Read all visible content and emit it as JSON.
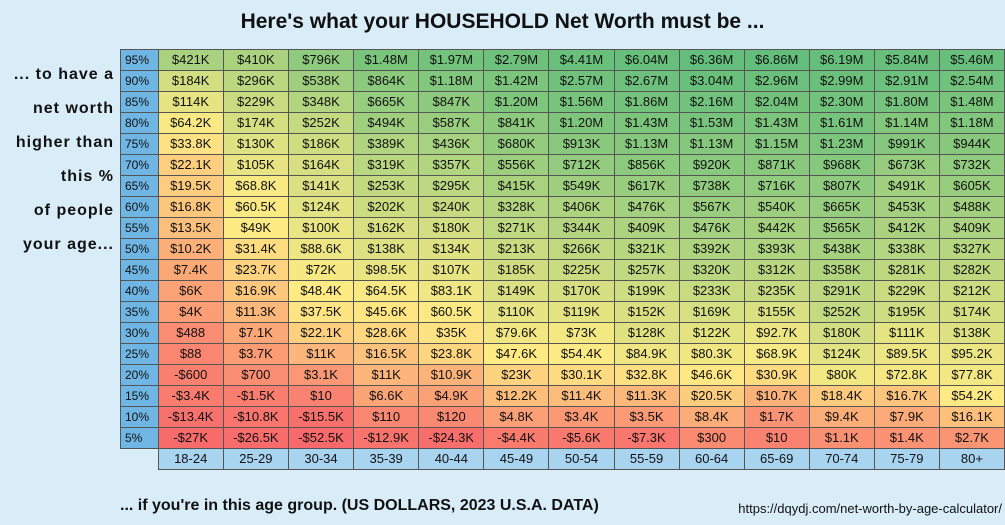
{
  "title": "Here's what your HOUSEHOLD Net Worth must be ...",
  "side_label": [
    "... to have a",
    "net worth",
    "higher than",
    "this %",
    "of people",
    "your age..."
  ],
  "footer": "... if you're in this age group. (US DOLLARS, 2023 U.S.A. DATA)",
  "url": "https://dqydj.com/net-worth-by-age-calculator/",
  "colors": {
    "high": "#63be7b",
    "mid": "#ffeb84",
    "low": "#f8696b",
    "percentile": "#6fb6e5",
    "age_header": "#a9d4ef",
    "background": "#d9edf9"
  },
  "chart_data": {
    "type": "table",
    "title": "Here's what your HOUSEHOLD Net Worth must be ...",
    "columns": [
      "18-24",
      "25-29",
      "30-34",
      "35-39",
      "40-44",
      "45-49",
      "50-54",
      "55-59",
      "60-64",
      "65-69",
      "70-74",
      "75-79",
      "80+"
    ],
    "rows": [
      {
        "percentile": "95%",
        "cells": [
          "$421K",
          "$410K",
          "$796K",
          "$1.48M",
          "$1.97M",
          "$2.79M",
          "$4.41M",
          "$6.04M",
          "$6.36M",
          "$6.86M",
          "$6.19M",
          "$5.84M",
          "$5.46M"
        ],
        "values": [
          421000,
          410000,
          796000,
          1480000,
          1970000,
          2790000,
          4410000,
          6040000,
          6360000,
          6860000,
          6190000,
          5840000,
          5460000
        ]
      },
      {
        "percentile": "90%",
        "cells": [
          "$184K",
          "$296K",
          "$538K",
          "$864K",
          "$1.18M",
          "$1.42M",
          "$2.57M",
          "$2.67M",
          "$3.04M",
          "$2.96M",
          "$2.99M",
          "$2.91M",
          "$2.54M"
        ],
        "values": [
          184000,
          296000,
          538000,
          864000,
          1180000,
          1420000,
          2570000,
          2670000,
          3040000,
          2960000,
          2990000,
          2910000,
          2540000
        ]
      },
      {
        "percentile": "85%",
        "cells": [
          "$114K",
          "$229K",
          "$348K",
          "$665K",
          "$847K",
          "$1.20M",
          "$1.56M",
          "$1.86M",
          "$2.16M",
          "$2.04M",
          "$2.30M",
          "$1.80M",
          "$1.48M"
        ],
        "values": [
          114000,
          229000,
          348000,
          665000,
          847000,
          1200000,
          1560000,
          1860000,
          2160000,
          2040000,
          2300000,
          1800000,
          1480000
        ]
      },
      {
        "percentile": "80%",
        "cells": [
          "$64.2K",
          "$174K",
          "$252K",
          "$494K",
          "$587K",
          "$841K",
          "$1.20M",
          "$1.43M",
          "$1.53M",
          "$1.43M",
          "$1.61M",
          "$1.14M",
          "$1.18M"
        ],
        "values": [
          64200,
          174000,
          252000,
          494000,
          587000,
          841000,
          1200000,
          1430000,
          1530000,
          1430000,
          1610000,
          1140000,
          1180000
        ]
      },
      {
        "percentile": "75%",
        "cells": [
          "$33.8K",
          "$130K",
          "$186K",
          "$389K",
          "$436K",
          "$680K",
          "$913K",
          "$1.13M",
          "$1.13M",
          "$1.15M",
          "$1.23M",
          "$991K",
          "$944K"
        ],
        "values": [
          33800,
          130000,
          186000,
          389000,
          436000,
          680000,
          913000,
          1130000,
          1130000,
          1150000,
          1230000,
          991000,
          944000
        ]
      },
      {
        "percentile": "70%",
        "cells": [
          "$22.1K",
          "$105K",
          "$164K",
          "$319K",
          "$357K",
          "$556K",
          "$712K",
          "$856K",
          "$920K",
          "$871K",
          "$968K",
          "$673K",
          "$732K"
        ],
        "values": [
          22100,
          105000,
          164000,
          319000,
          357000,
          556000,
          712000,
          856000,
          920000,
          871000,
          968000,
          673000,
          732000
        ]
      },
      {
        "percentile": "65%",
        "cells": [
          "$19.5K",
          "$68.8K",
          "$141K",
          "$253K",
          "$295K",
          "$415K",
          "$549K",
          "$617K",
          "$738K",
          "$716K",
          "$807K",
          "$491K",
          "$605K"
        ],
        "values": [
          19500,
          68800,
          141000,
          253000,
          295000,
          415000,
          549000,
          617000,
          738000,
          716000,
          807000,
          491000,
          605000
        ]
      },
      {
        "percentile": "60%",
        "cells": [
          "$16.8K",
          "$60.5K",
          "$124K",
          "$202K",
          "$240K",
          "$328K",
          "$406K",
          "$476K",
          "$567K",
          "$540K",
          "$665K",
          "$453K",
          "$488K"
        ],
        "values": [
          16800,
          60500,
          124000,
          202000,
          240000,
          328000,
          406000,
          476000,
          567000,
          540000,
          665000,
          453000,
          488000
        ]
      },
      {
        "percentile": "55%",
        "cells": [
          "$13.5K",
          "$49K",
          "$100K",
          "$162K",
          "$180K",
          "$271K",
          "$344K",
          "$409K",
          "$476K",
          "$442K",
          "$565K",
          "$412K",
          "$409K"
        ],
        "values": [
          13500,
          49000,
          100000,
          162000,
          180000,
          271000,
          344000,
          409000,
          476000,
          442000,
          565000,
          412000,
          409000
        ]
      },
      {
        "percentile": "50%",
        "cells": [
          "$10.2K",
          "$31.4K",
          "$88.6K",
          "$138K",
          "$134K",
          "$213K",
          "$266K",
          "$321K",
          "$392K",
          "$393K",
          "$438K",
          "$338K",
          "$327K"
        ],
        "values": [
          10200,
          31400,
          88600,
          138000,
          134000,
          213000,
          266000,
          321000,
          392000,
          393000,
          438000,
          338000,
          327000
        ]
      },
      {
        "percentile": "45%",
        "cells": [
          "$7.4K",
          "$23.7K",
          "$72K",
          "$98.5K",
          "$107K",
          "$185K",
          "$225K",
          "$257K",
          "$320K",
          "$312K",
          "$358K",
          "$281K",
          "$282K"
        ],
        "values": [
          7400,
          23700,
          72000,
          98500,
          107000,
          185000,
          225000,
          257000,
          320000,
          312000,
          358000,
          281000,
          282000
        ]
      },
      {
        "percentile": "40%",
        "cells": [
          "$6K",
          "$16.9K",
          "$48.4K",
          "$64.5K",
          "$83.1K",
          "$149K",
          "$170K",
          "$199K",
          "$233K",
          "$235K",
          "$291K",
          "$229K",
          "$212K"
        ],
        "values": [
          6000,
          16900,
          48400,
          64500,
          83100,
          149000,
          170000,
          199000,
          233000,
          235000,
          291000,
          229000,
          212000
        ]
      },
      {
        "percentile": "35%",
        "cells": [
          "$4K",
          "$11.3K",
          "$37.5K",
          "$45.6K",
          "$60.5K",
          "$110K",
          "$119K",
          "$152K",
          "$169K",
          "$155K",
          "$252K",
          "$195K",
          "$174K"
        ],
        "values": [
          4000,
          11300,
          37500,
          45600,
          60500,
          110000,
          119000,
          152000,
          169000,
          155000,
          252000,
          195000,
          174000
        ]
      },
      {
        "percentile": "30%",
        "cells": [
          "$488",
          "$7.1K",
          "$22.1K",
          "$28.6K",
          "$35K",
          "$79.6K",
          "$73K",
          "$128K",
          "$122K",
          "$92.7K",
          "$180K",
          "$111K",
          "$138K"
        ],
        "values": [
          488,
          7100,
          22100,
          28600,
          35000,
          79600,
          73000,
          128000,
          122000,
          92700,
          180000,
          111000,
          138000
        ]
      },
      {
        "percentile": "25%",
        "cells": [
          "$88",
          "$3.7K",
          "$11K",
          "$16.5K",
          "$23.8K",
          "$47.6K",
          "$54.4K",
          "$84.9K",
          "$80.3K",
          "$68.9K",
          "$124K",
          "$89.5K",
          "$95.2K"
        ],
        "values": [
          88,
          3700,
          11000,
          16500,
          23800,
          47600,
          54400,
          84900,
          80300,
          68900,
          124000,
          89500,
          95200
        ]
      },
      {
        "percentile": "20%",
        "cells": [
          "-$600",
          "$700",
          "$3.1K",
          "$11K",
          "$10.9K",
          "$23K",
          "$30.1K",
          "$32.8K",
          "$46.6K",
          "$30.9K",
          "$80K",
          "$72.8K",
          "$77.8K"
        ],
        "values": [
          -600,
          700,
          3100,
          11000,
          10900,
          23000,
          30100,
          32800,
          46600,
          30900,
          80000,
          72800,
          77800
        ]
      },
      {
        "percentile": "15%",
        "cells": [
          "-$3.4K",
          "-$1.5K",
          "$10",
          "$6.6K",
          "$4.9K",
          "$12.2K",
          "$11.4K",
          "$11.3K",
          "$20.5K",
          "$10.7K",
          "$18.4K",
          "$16.7K",
          "$54.2K"
        ],
        "values": [
          -3400,
          -1500,
          10,
          6600,
          4900,
          12200,
          11400,
          11300,
          20500,
          10700,
          18400,
          16700,
          54200
        ]
      },
      {
        "percentile": "10%",
        "cells": [
          "-$13.4K",
          "-$10.8K",
          "-$15.5K",
          "$110",
          "$120",
          "$4.8K",
          "$3.4K",
          "$3.5K",
          "$8.4K",
          "$1.7K",
          "$9.4K",
          "$7.9K",
          "$16.1K"
        ],
        "values": [
          -13400,
          -10800,
          -15500,
          110,
          120,
          4800,
          3400,
          3500,
          8400,
          1700,
          9400,
          7900,
          16100
        ]
      },
      {
        "percentile": "5%",
        "cells": [
          "-$27K",
          "-$26.5K",
          "-$52.5K",
          "-$12.9K",
          "-$24.3K",
          "-$4.4K",
          "-$5.6K",
          "-$7.3K",
          "$300",
          "$10",
          "$1.1K",
          "$1.4K",
          "$2.7K"
        ],
        "values": [
          -27000,
          -26500,
          -52500,
          -12900,
          -24300,
          -4400,
          -5600,
          -7300,
          300,
          10,
          1100,
          1400,
          2700
        ]
      }
    ]
  }
}
